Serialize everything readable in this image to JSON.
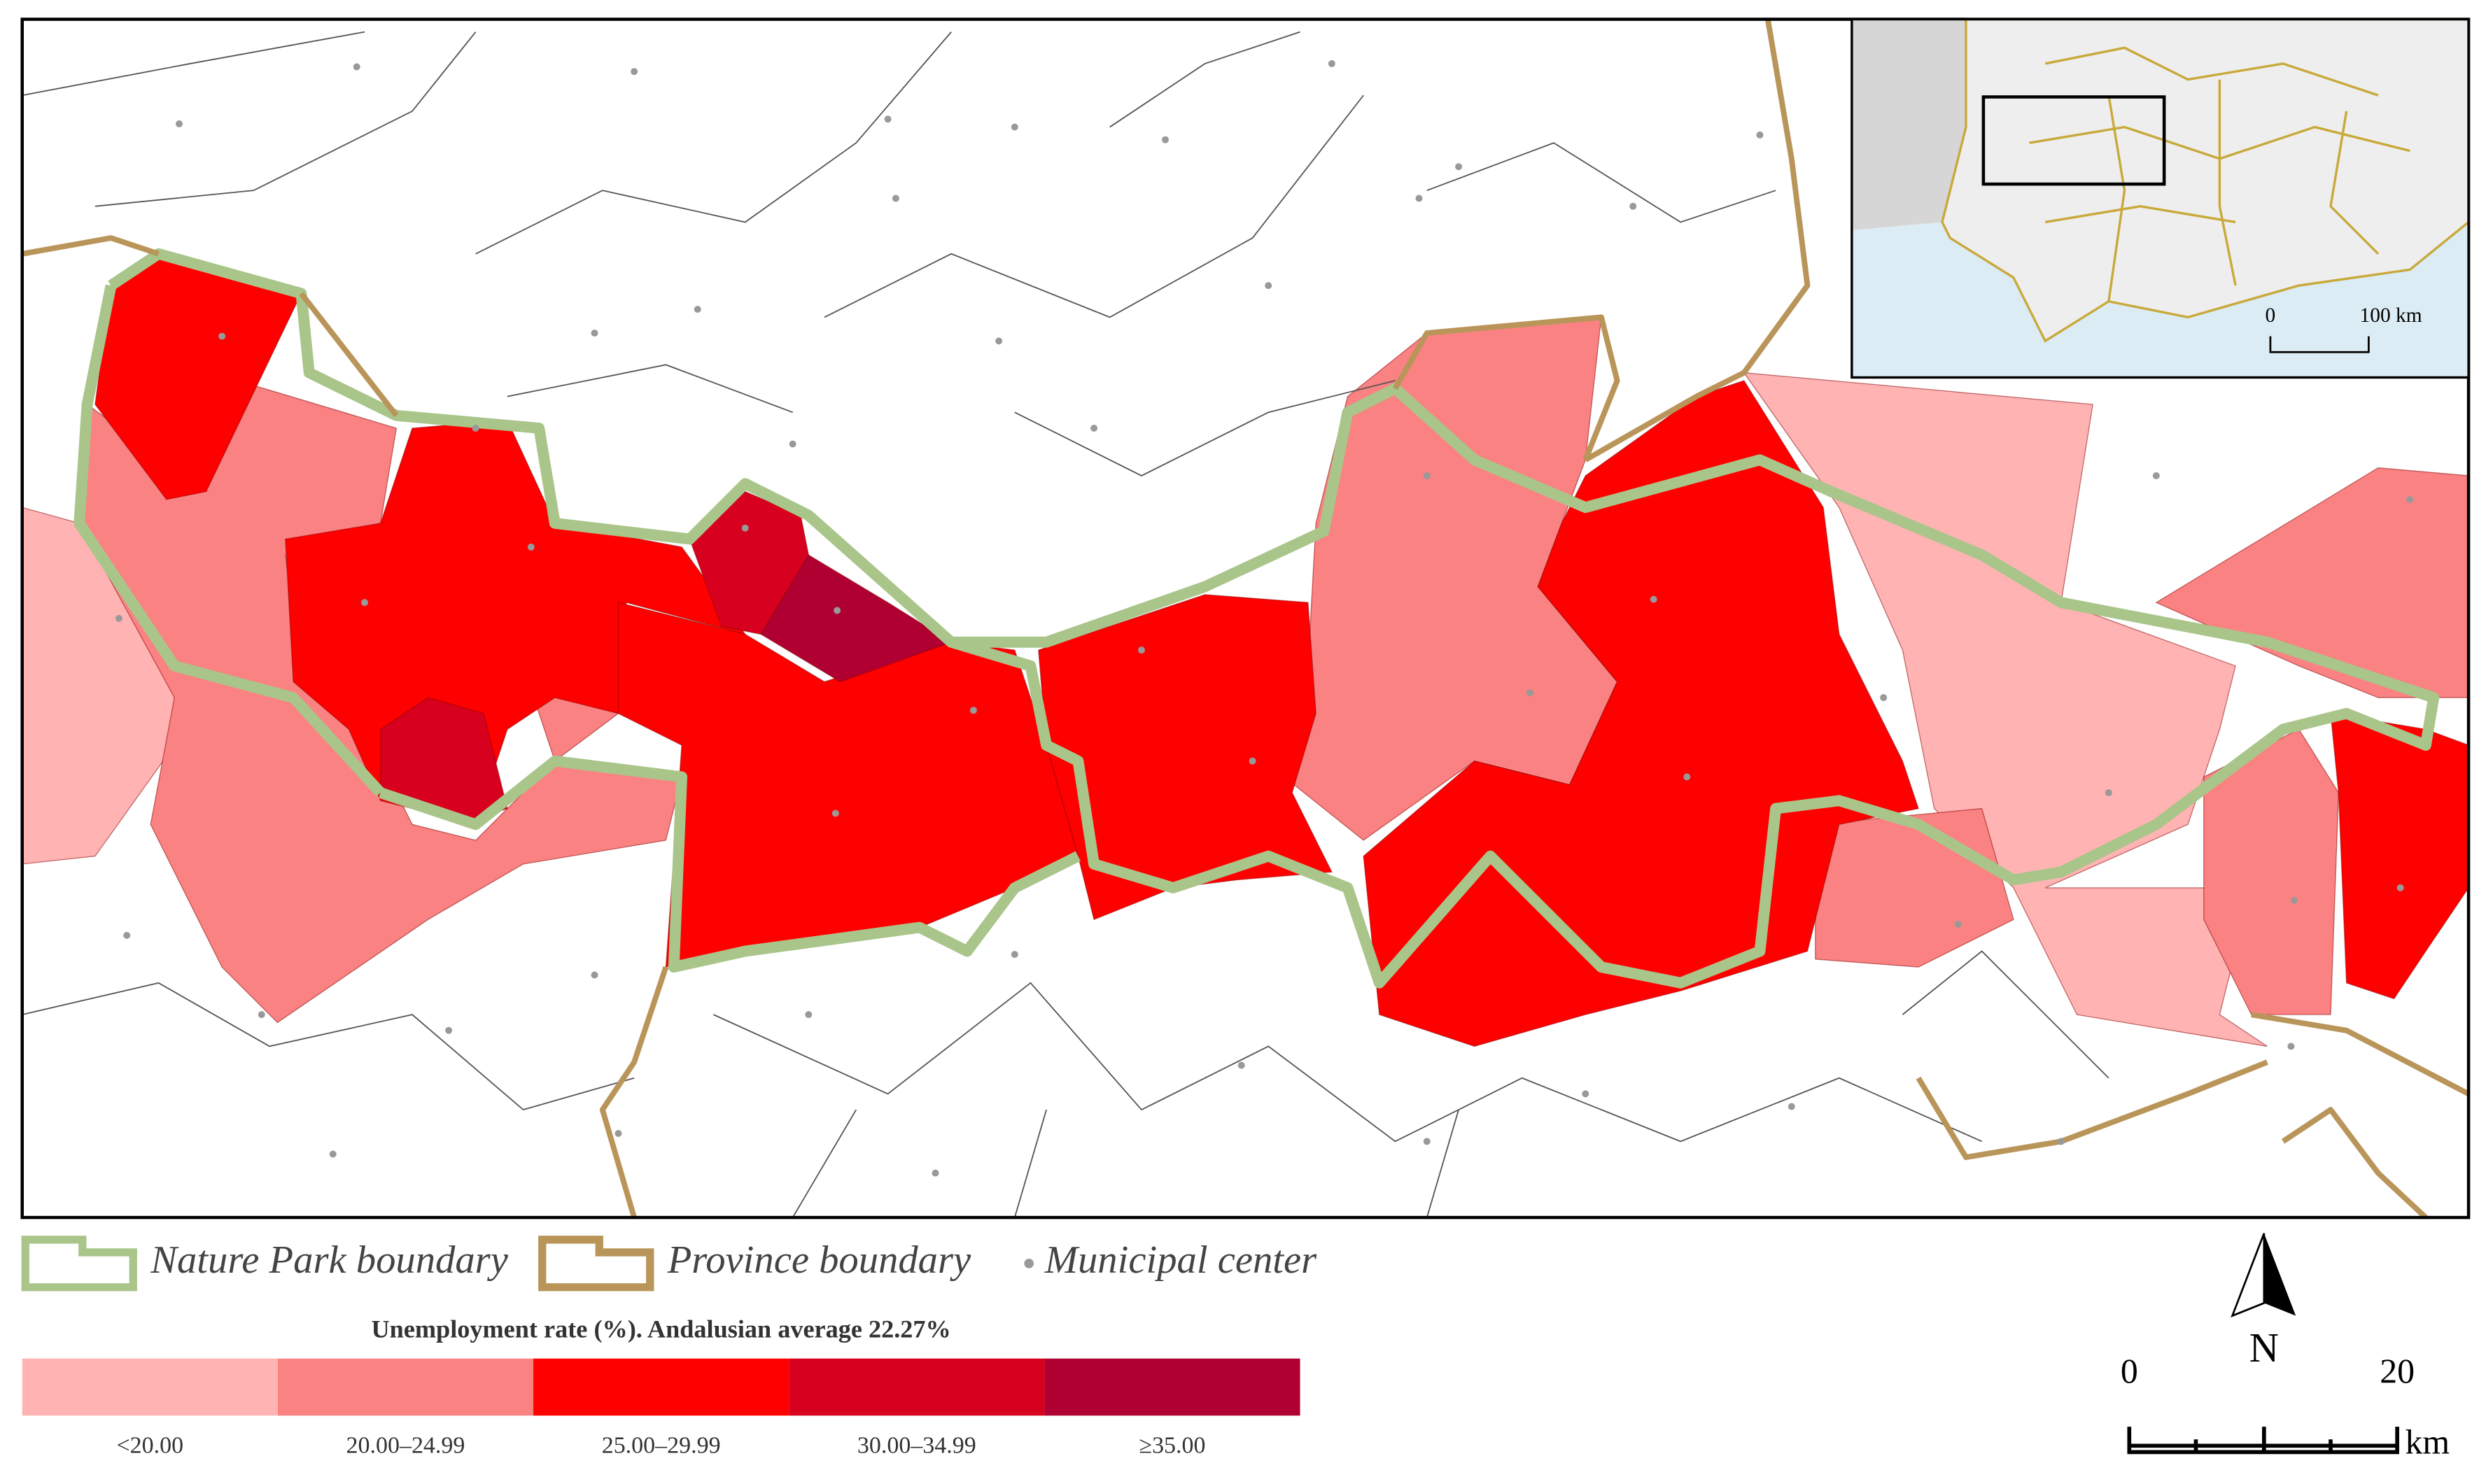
{
  "legend": {
    "nature_park": "Nature Park boundary",
    "province": "Province boundary",
    "municipal_center": "Municipal center"
  },
  "color_scale": {
    "title": "Unemployment rate (%). Andalusian average 22.27%",
    "classes": [
      {
        "label": "<20.00",
        "color": "#ffb3b3"
      },
      {
        "label": "20.00–24.99",
        "color": "#fa8282"
      },
      {
        "label": "25.00–29.99",
        "color": "#ff0000"
      },
      {
        "label": "30.00–34.99",
        "color": "#d7001f"
      },
      {
        "label": "≥35.00",
        "color": "#b00032"
      }
    ]
  },
  "inset": {
    "scale_start": "0",
    "scale_end": "100 km"
  },
  "scale_bar": {
    "start": "0",
    "end": "20",
    "unit": "km"
  },
  "north": "N"
}
